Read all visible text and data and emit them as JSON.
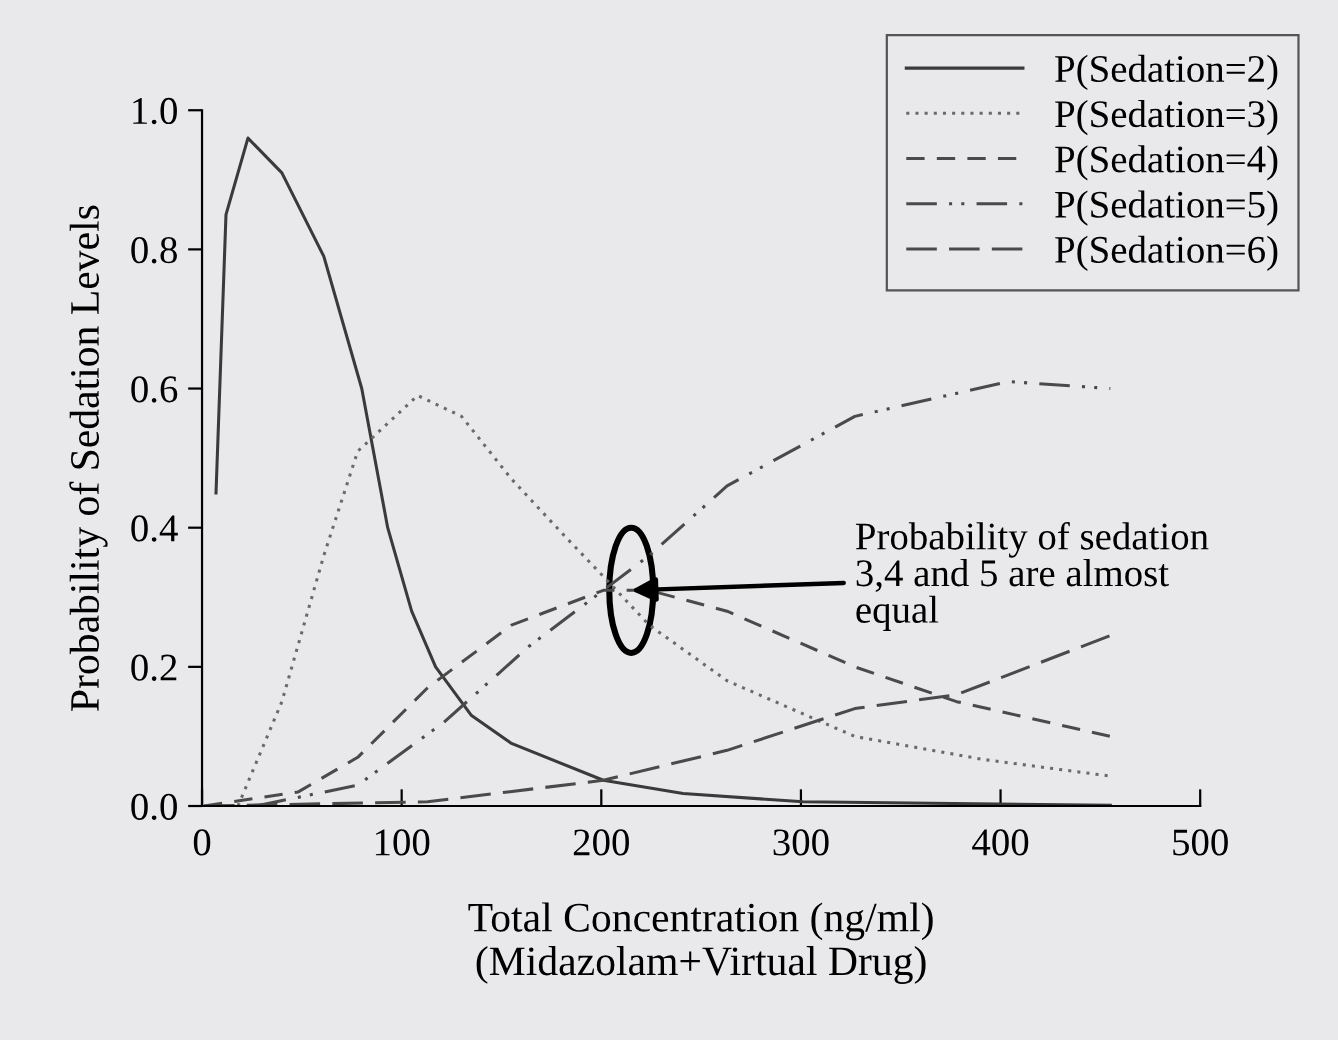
{
  "chart_data": {
    "type": "line",
    "xlabel": "Total Concentration (ng/ml)\n(Midazolam+Virtual Drug)",
    "ylabel": "Probability of Sedation Levels",
    "xlim": [
      0,
      500
    ],
    "xticks": [
      0,
      100,
      200,
      300,
      400,
      500
    ],
    "ylim": [
      0,
      1.0
    ],
    "yticks": [
      {
        "value": 0,
        "label": "0.0"
      },
      {
        "value": 0.2,
        "label": "0.2"
      },
      {
        "value": 0.4,
        "label": "0.4"
      },
      {
        "value": 0.6,
        "label": "0.6"
      },
      {
        "value": 0.8,
        "label": "0.8"
      },
      {
        "value": 1.0,
        "label": "1.0"
      }
    ],
    "grid": false,
    "legend": "top right",
    "annotations": [
      {
        "text": "Probability of sedation\n3,4 and 5 are almost\nequal",
        "x": 215,
        "y": 0.31
      }
    ],
    "series": [
      {
        "name": "P(Sedation=2)",
        "color": "#3a3a3a",
        "line_style": "solid",
        "x": [
          7,
          12,
          23,
          40,
          61,
          80,
          93,
          105,
          117,
          135,
          155,
          201,
          241,
          301,
          455
        ],
        "values": [
          0.45,
          0.85,
          0.96,
          0.91,
          0.79,
          0.6,
          0.4,
          0.28,
          0.2,
          0.13,
          0.09,
          0.037,
          0.018,
          0.006,
          0.001
        ]
      },
      {
        "name": "P(Sedation=3)",
        "color": "#6a6a6a",
        "line_style": "dotted",
        "x": [
          18,
          40,
          61,
          78,
          108,
          130,
          155,
          181,
          201,
          224,
          263,
          327,
          391,
          455
        ],
        "values": [
          0,
          0.15,
          0.36,
          0.51,
          0.59,
          0.56,
          0.47,
          0.39,
          0.33,
          0.26,
          0.18,
          0.1,
          0.067,
          0.043
        ]
      },
      {
        "name": "P(Sedation=4)",
        "color": "#4a4a4a",
        "line_style": "dashed",
        "x": [
          1,
          48,
          78,
          113,
          155,
          201,
          224,
          263,
          327,
          378,
          455
        ],
        "values": [
          0,
          0.02,
          0.07,
          0.17,
          0.26,
          0.31,
          0.31,
          0.28,
          0.2,
          0.15,
          0.1
        ]
      },
      {
        "name": "P(Sedation=5)",
        "color": "#4a4a4a",
        "line_style": "dashdotdot",
        "x": [
          27,
          78,
          121,
          164,
          201,
          224,
          263,
          327,
          404,
          455
        ],
        "values": [
          0,
          0.03,
          0.12,
          0.23,
          0.31,
          0.36,
          0.46,
          0.56,
          0.61,
          0.6
        ]
      },
      {
        "name": "P(Sedation=6)",
        "color": "#4a4a4a",
        "line_style": "longdashed",
        "x": [
          1,
          113,
          201,
          263,
          327,
          378,
          455
        ],
        "values": [
          0,
          0.006,
          0.037,
          0.08,
          0.14,
          0.16,
          0.245
        ]
      }
    ]
  }
}
